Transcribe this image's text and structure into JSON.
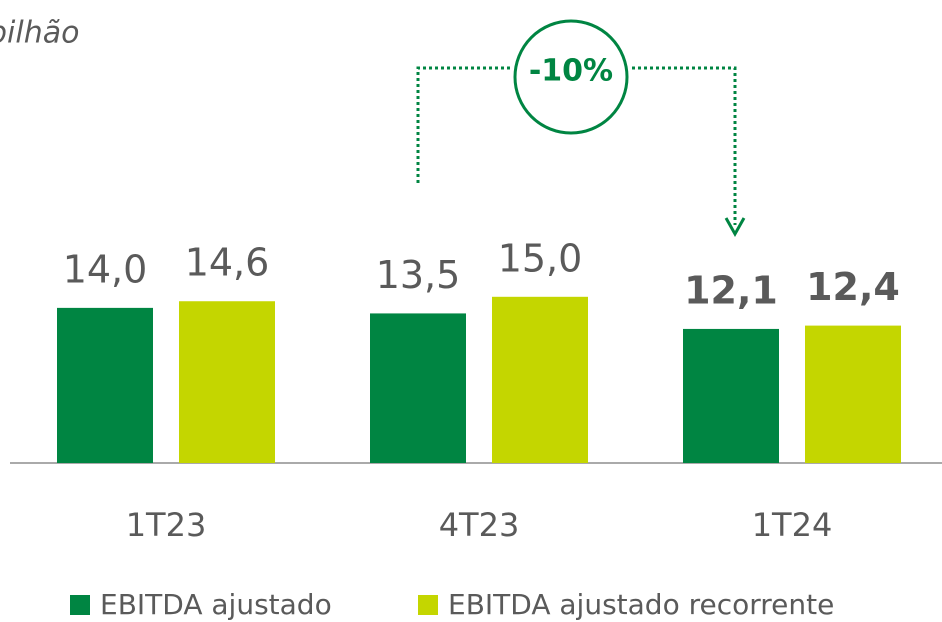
{
  "chart_data": {
    "type": "bar",
    "title": "bilhão",
    "categories": [
      "1T23",
      "4T23",
      "1T24"
    ],
    "series": [
      {
        "name": "EBITDA ajustado",
        "color": "#008542",
        "values": [
          14.0,
          13.5,
          12.1
        ],
        "value_labels": [
          "14,0",
          "13,5",
          "12,1"
        ]
      },
      {
        "name": "EBITDA ajustado recorrente",
        "color": "#c4d600",
        "values": [
          14.6,
          15.0,
          12.4
        ],
        "value_labels": [
          "14,6",
          "15,0",
          "12,4"
        ]
      }
    ],
    "annotation": "-10%"
  }
}
